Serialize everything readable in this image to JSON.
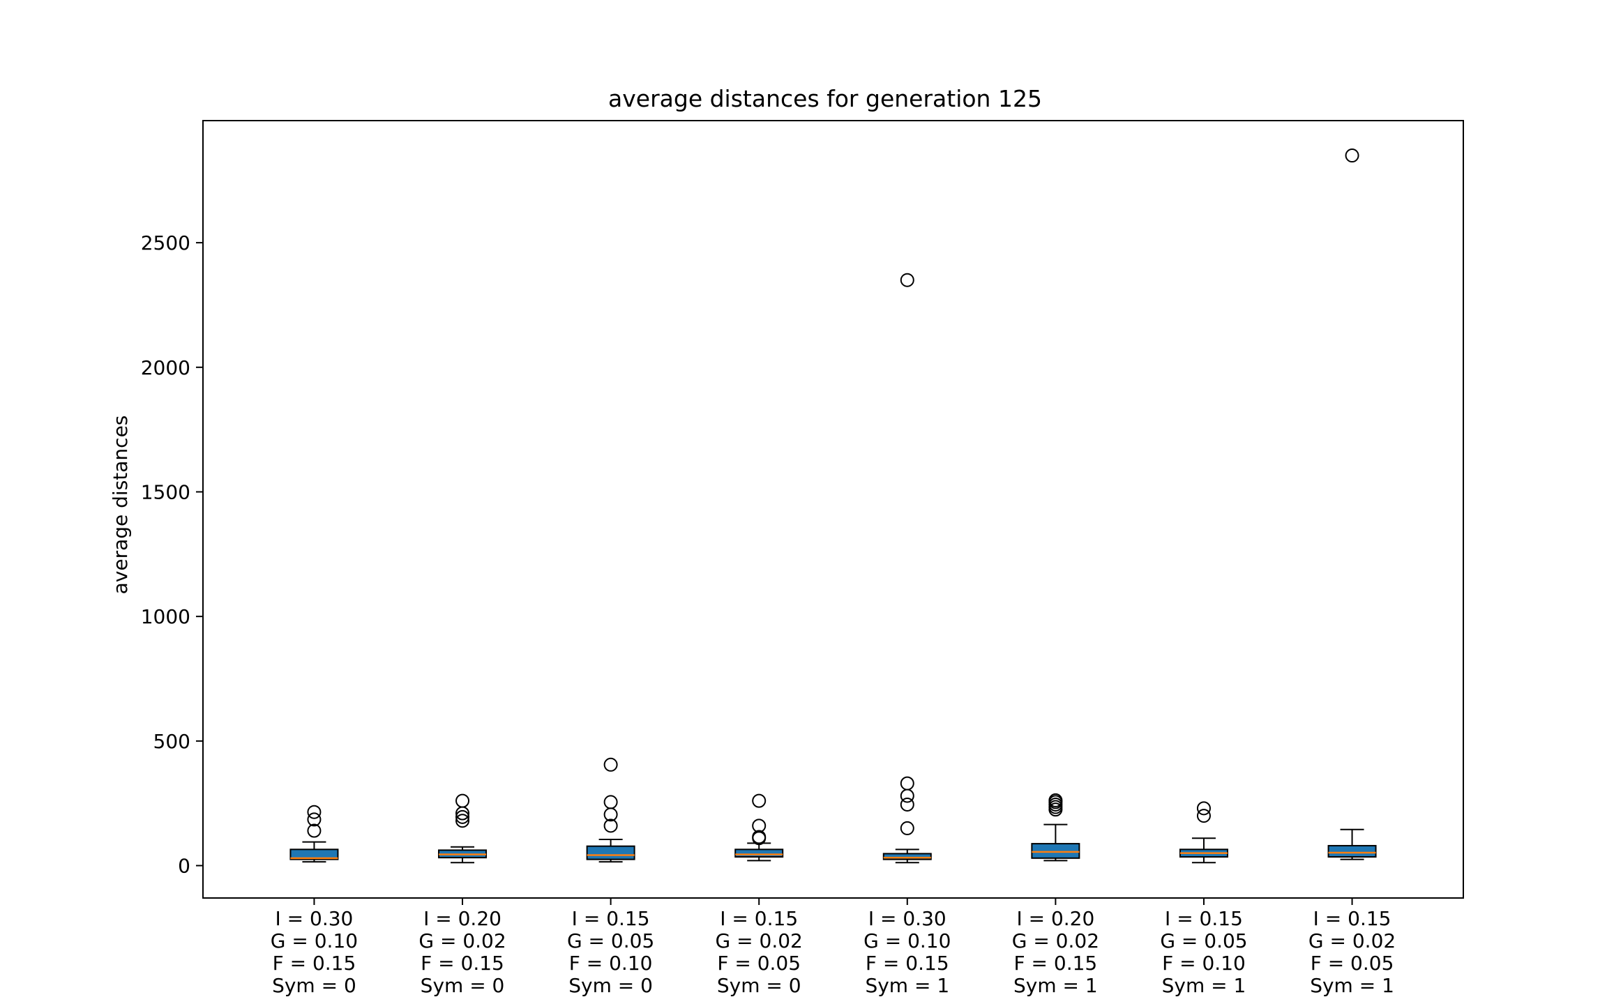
{
  "chart_data": {
    "type": "boxplot",
    "title": "average distances for generation 125",
    "ylabel": "average distances",
    "xlabel": "",
    "ylim": [
      -130,
      2990
    ],
    "yticks": [
      0,
      500,
      1000,
      1500,
      2000,
      2500
    ],
    "grid": false,
    "box_color": "#1f77b4",
    "median_color": "#ff7f0e",
    "categories": [
      [
        "I = 0.30",
        "G = 0.10",
        "F = 0.15",
        "Sym = 0"
      ],
      [
        "I = 0.20",
        "G = 0.02",
        "F = 0.15",
        "Sym = 0"
      ],
      [
        "I = 0.15",
        "G = 0.05",
        "F = 0.10",
        "Sym = 0"
      ],
      [
        "I = 0.15",
        "G = 0.02",
        "F = 0.05",
        "Sym = 0"
      ],
      [
        "I = 0.30",
        "G = 0.10",
        "F = 0.15",
        "Sym = 1"
      ],
      [
        "I = 0.20",
        "G = 0.02",
        "F = 0.15",
        "Sym = 1"
      ],
      [
        "I = 0.15",
        "G = 0.05",
        "F = 0.10",
        "Sym = 1"
      ],
      [
        "I = 0.15",
        "G = 0.02",
        "F = 0.05",
        "Sym = 1"
      ]
    ],
    "boxes": [
      {
        "whislo": 15,
        "q1": 25,
        "med": 30,
        "q3": 65,
        "whishi": 95,
        "fliers": [
          140,
          185,
          215
        ]
      },
      {
        "whislo": 12,
        "q1": 32,
        "med": 45,
        "q3": 62,
        "whishi": 75,
        "fliers": [
          180,
          195,
          210,
          260
        ]
      },
      {
        "whislo": 15,
        "q1": 25,
        "med": 42,
        "q3": 78,
        "whishi": 105,
        "fliers": [
          160,
          205,
          255,
          405
        ]
      },
      {
        "whislo": 20,
        "q1": 35,
        "med": 45,
        "q3": 65,
        "whishi": 90,
        "fliers": [
          110,
          115,
          160,
          260
        ]
      },
      {
        "whislo": 12,
        "q1": 25,
        "med": 32,
        "q3": 48,
        "whishi": 65,
        "fliers": [
          150,
          245,
          280,
          330,
          2350
        ]
      },
      {
        "whislo": 20,
        "q1": 30,
        "med": 55,
        "q3": 88,
        "whishi": 165,
        "fliers": [
          225,
          235,
          245,
          255,
          262
        ]
      },
      {
        "whislo": 12,
        "q1": 35,
        "med": 50,
        "q3": 65,
        "whishi": 110,
        "fliers": [
          200,
          230
        ]
      },
      {
        "whislo": 25,
        "q1": 35,
        "med": 52,
        "q3": 80,
        "whishi": 145,
        "fliers": [
          2850
        ]
      }
    ]
  }
}
